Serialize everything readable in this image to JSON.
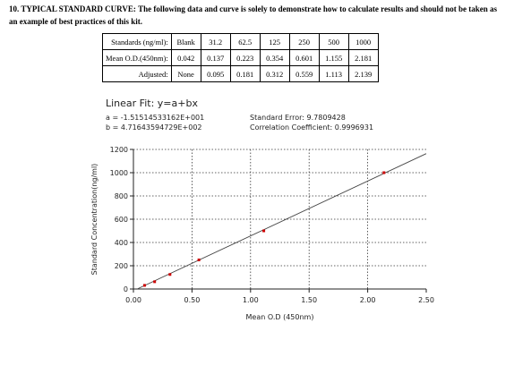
{
  "intro": {
    "heading": "10. TYPICAL STANDARD CURVE:",
    "text": "The following data and curve is solely to demonstrate how to calculate results and should not be taken as an example of best practices of this kit."
  },
  "table": {
    "rows": [
      {
        "label": "Standards (ng/ml):",
        "cells": [
          "Blank",
          "31.2",
          "62.5",
          "125",
          "250",
          "500",
          "1000"
        ]
      },
      {
        "label": "Mean O.D.(450nm):",
        "cells": [
          "0.042",
          "0.137",
          "0.223",
          "0.354",
          "0.601",
          "1.155",
          "2.181"
        ]
      },
      {
        "label": "Adjusted:",
        "cells": [
          "None",
          "0.095",
          "0.181",
          "0.312",
          "0.559",
          "1.113",
          "2.139"
        ]
      }
    ]
  },
  "fit": {
    "title": "Linear Fit: y=a+bx",
    "a": "a = -1.51514533162E+001",
    "b": "b = 4.71643594729E+002",
    "std_error": "Standard Error: 9.7809428",
    "corr": "Correlation Coefficient: 0.9996931"
  },
  "chart_data": {
    "type": "scatter",
    "xlabel": "Mean O.D (450nm)",
    "ylabel": "Standard Concentration(ng/ml)",
    "xlim": [
      0,
      2.5
    ],
    "ylim": [
      0,
      1200
    ],
    "x_ticks": [
      "0.00",
      "0.50",
      "1.00",
      "1.50",
      "2.00",
      "2.50"
    ],
    "y_ticks": [
      "0",
      "200",
      "400",
      "600",
      "800",
      "1000",
      "1200"
    ],
    "grid": true,
    "series": [
      {
        "x": [
          0.095,
          0.181,
          0.312,
          0.559,
          1.113,
          2.139
        ],
        "y": [
          31.2,
          62.5,
          125,
          250,
          500,
          1000
        ]
      }
    ],
    "fit_line": {
      "intercept": -15.1514533162,
      "slope": 471.643594729
    },
    "colors": {
      "point": "#cc0000",
      "line": "#444444",
      "grid": "#333333"
    }
  }
}
